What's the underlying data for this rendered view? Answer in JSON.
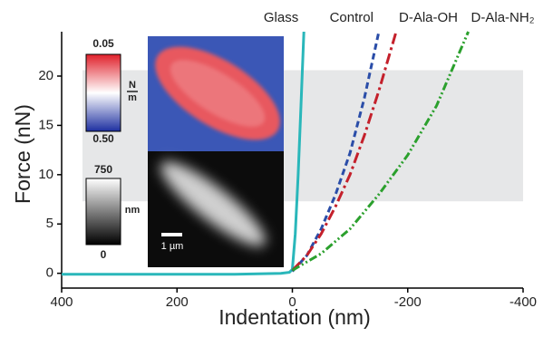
{
  "chart_data": {
    "type": "line",
    "xlabel": "Indentation (nm)",
    "ylabel": "Force (nN)",
    "xlim": [
      400,
      -400
    ],
    "ylim": [
      -1.5,
      24.5
    ],
    "xticks": [
      400,
      200,
      0,
      -200,
      -400
    ],
    "yticks": [
      0,
      5,
      10,
      15,
      20
    ],
    "highlight_band": [
      7.3,
      20.6
    ],
    "series": [
      {
        "name": "Glass",
        "color": "#2ab7ba",
        "x": [
          400,
          300,
          200,
          100,
          20,
          5,
          0,
          -5,
          -10,
          -15,
          -20
        ],
        "values": [
          -0.1,
          -0.1,
          -0.1,
          -0.1,
          0,
          0.1,
          0.4,
          4,
          10,
          17,
          24.5
        ]
      },
      {
        "name": "Control",
        "color": "#2a4da8",
        "x": [
          0,
          -25,
          -50,
          -75,
          -100,
          -125,
          -150
        ],
        "values": [
          0.2,
          1.8,
          4.5,
          8,
          12.2,
          17.8,
          24.5
        ]
      },
      {
        "name": "D-Ala-OH",
        "color": "#c4202b",
        "x": [
          0,
          -25,
          -50,
          -75,
          -100,
          -125,
          -150,
          -180
        ],
        "values": [
          0.3,
          1.8,
          4,
          6.8,
          10,
          14,
          18.5,
          24.5
        ]
      },
      {
        "name": "D-Ala-NH₂",
        "color": "#2ba02d",
        "x": [
          0,
          -50,
          -100,
          -150,
          -200,
          -250,
          -305
        ],
        "values": [
          0.3,
          2,
          4.5,
          8,
          12,
          17,
          24.5
        ]
      }
    ],
    "insets": {
      "stiffness_colorbar": {
        "max_label": "0.05",
        "min_label": "0.50",
        "unit_numerator": "N",
        "unit_denominator": "m"
      },
      "height_colorbar": {
        "max_label": "750",
        "min_label": "0",
        "unit": "nm"
      },
      "scale_bar": "1 µm"
    }
  }
}
